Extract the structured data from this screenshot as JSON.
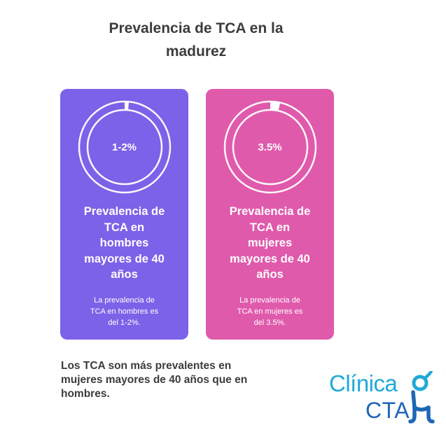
{
  "header": {
    "title_line1": "Prevalencia de TCA en la",
    "title_line2": "madurez"
  },
  "cards": [
    {
      "value": "1-2%",
      "ring_fill_fraction": 0.015,
      "heading_lines": [
        "Prevalencia de",
        "TCA en",
        "hombres",
        "mayores de 40",
        "años"
      ],
      "desc_lines": [
        "La prevalencia de",
        "TCA en hombres es",
        "del 1-2%."
      ],
      "color": "#7b62e8"
    },
    {
      "value": "3.5%",
      "ring_fill_fraction": 0.035,
      "heading_lines": [
        "Prevalencia de",
        "TCA en",
        "mujeres",
        "mayores de 40",
        "años"
      ],
      "desc_lines": [
        "La prevalencia de",
        "TCA en mujeres es",
        "del 3.5%."
      ],
      "color": "#e05aac"
    }
  ],
  "conclusion_lines": [
    "Los TCA son más prevalentes en",
    "mujeres mayores de 40 años que en",
    "hombres."
  ],
  "logo": {
    "line1": "Clínica",
    "line2": "CTA",
    "colors": {
      "primary": "#20a9d8",
      "secondary": "#1f66b6"
    },
    "icon": "person-figure-icon"
  }
}
